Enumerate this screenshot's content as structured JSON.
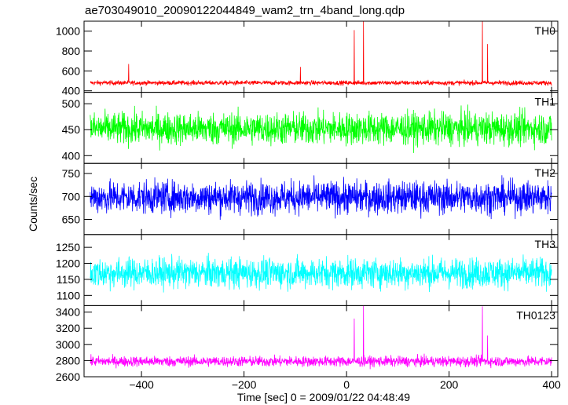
{
  "chart_data": {
    "type": "line",
    "title": "ae703049010_20090122044849_wam2_trn_4band_long.qdp",
    "xlabel": "Time [sec] 0 = 2009/01/22 04:48:49",
    "ylabel": "Counts/sec",
    "xlim": [
      -512,
      412
    ],
    "x_ticks": [
      -400,
      -200,
      0,
      200,
      400
    ],
    "x_tick_labels": [
      "−400",
      "−200",
      "0",
      "200",
      "400"
    ],
    "x_range": [
      -500,
      400
    ],
    "series": [
      {
        "name": "TH0",
        "color": "#ff0000",
        "ylim": [
          385,
          1100
        ],
        "y_ticks": [
          400,
          600,
          800,
          1000
        ],
        "y_tick_labels": [
          "400",
          "600",
          "800",
          "1000"
        ],
        "baseline": 480,
        "noise": 16,
        "spikes": [
          {
            "x": -425,
            "y": 670
          },
          {
            "x": -90,
            "y": 640
          },
          {
            "x": 15,
            "y": 1010
          },
          {
            "x": 33,
            "y": 1100
          },
          {
            "x": 265,
            "y": 1100
          },
          {
            "x": 275,
            "y": 870
          }
        ]
      },
      {
        "name": "TH1",
        "color": "#00ff00",
        "ylim": [
          385,
          522
        ],
        "y_ticks": [
          400,
          450,
          500
        ],
        "y_tick_labels": [
          "400",
          "450",
          "500"
        ],
        "baseline": 452,
        "noise": 22,
        "spikes": []
      },
      {
        "name": "TH2",
        "color": "#0000ff",
        "ylim": [
          617,
          772
        ],
        "y_ticks": [
          650,
          700,
          750
        ],
        "y_tick_labels": [
          "650",
          "700",
          "750"
        ],
        "baseline": 698,
        "noise": 25,
        "spikes": []
      },
      {
        "name": "TH3",
        "color": "#00ffff",
        "ylim": [
          1068,
          1290
        ],
        "y_ticks": [
          1100,
          1150,
          1200,
          1250
        ],
        "y_tick_labels": [
          "1100",
          "1150",
          "1200",
          "1250"
        ],
        "baseline": 1170,
        "noise": 33,
        "spikes": []
      },
      {
        "name": "TH0123",
        "color": "#ff00ff",
        "ylim": [
          2600,
          3480
        ],
        "y_ticks": [
          2600,
          2800,
          3000,
          3200,
          3400
        ],
        "y_tick_labels": [
          "2600",
          "2800",
          "3000",
          "3200",
          "3400"
        ],
        "baseline": 2790,
        "noise": 45,
        "spikes": [
          {
            "x": 15,
            "y": 3320
          },
          {
            "x": 33,
            "y": 3480
          },
          {
            "x": 265,
            "y": 3470
          },
          {
            "x": 275,
            "y": 3110
          }
        ]
      }
    ]
  }
}
